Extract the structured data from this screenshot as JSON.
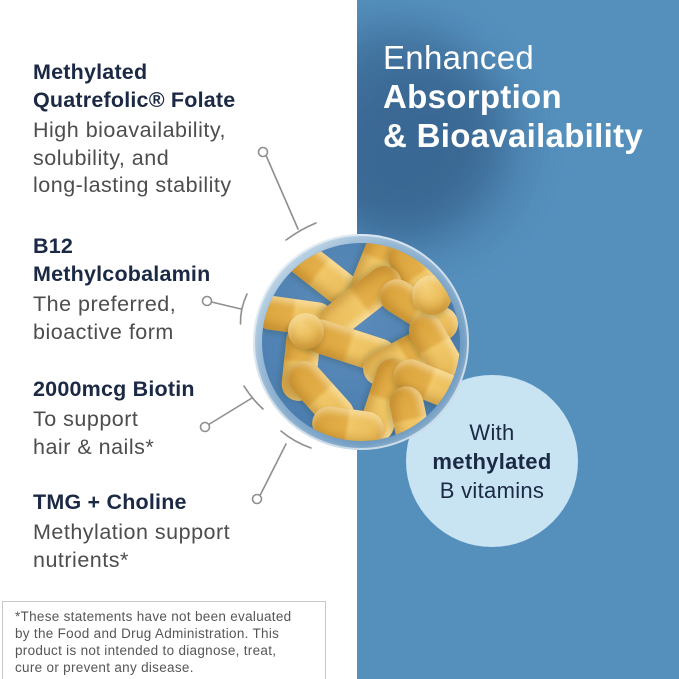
{
  "colors": {
    "panel_blue": "#5590bd",
    "badge_blue": "#c8e3f2",
    "navy": "#1b2944",
    "body_gray": "#4d4d4d",
    "capsule_yellow": "#e8b95c",
    "bowl_blue": "#4e81b2",
    "callout_gray": "#8f8f8f",
    "white": "#ffffff"
  },
  "left_panel": {
    "features": [
      {
        "title": "Methylated\nQuatrefolic® Folate",
        "description": "High bioavailability,\nsolubility, and\nlong-lasting stability"
      },
      {
        "title": "B12\nMethylcobalamin",
        "description": "The preferred,\nbioactive form"
      },
      {
        "title": "2000mcg Biotin",
        "description": "To support\nhair & nails*"
      },
      {
        "title": "TMG + Choline",
        "description": "Methylation support\nnutrients*"
      }
    ],
    "disclaimer": "*These statements have not been evaluated\nby the Food and Drug Administration. This\nproduct is not intended to diagnose, treat,\ncure or prevent any disease."
  },
  "right_panel": {
    "heading_light": "Enhanced",
    "heading_bold": "Absorption\n& Bioavailability",
    "badge": {
      "line1": "With",
      "line2": "methylated",
      "line3": "B vitamins"
    }
  },
  "photo": {
    "subject": "glass bowl of yellow supplement capsules"
  }
}
